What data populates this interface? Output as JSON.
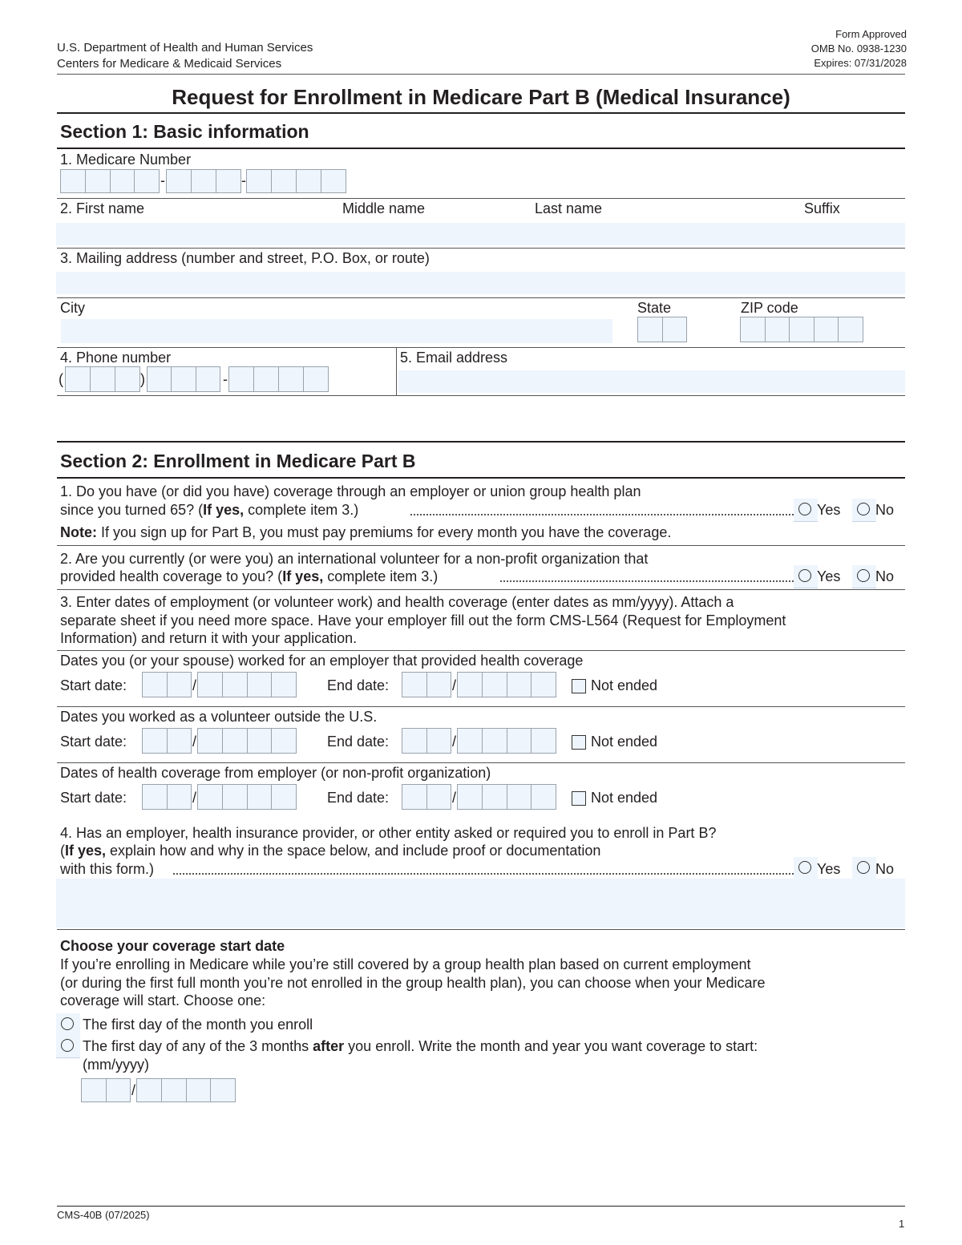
{
  "header": {
    "agency_line1": "U.S. Department of Health and Human Services",
    "agency_line2": "Centers for Medicare & Medicaid Services",
    "approval": "Form Approved",
    "omb": "OMB No. 0938-1230",
    "expires": "Expires: 07/31/2028"
  },
  "title": "Request for Enrollment in Medicare Part B (Medical Insurance)",
  "section1": {
    "heading": "Section 1: Basic information",
    "medicare_number": "1. Medicare Number",
    "first_name": "2. First name",
    "middle_name": "Middle name",
    "last_name": "Last name",
    "suffix": "Suffix",
    "mailing_address": "3. Mailing address (number and street, P.O. Box, or route)",
    "city": "City",
    "state": "State",
    "zip": "ZIP code",
    "phone": "4. Phone number",
    "email": "5. Email address"
  },
  "section2": {
    "heading": "Section 2: Enrollment in Medicare Part B",
    "q1_line1": "1. Do you have (or did you have) coverage through an employer or union group health plan",
    "q1_line2a": "since you turned 65? (",
    "q1_bold": "If yes,",
    "q1_line2b": " complete item 3.)",
    "note_bold": "Note:",
    "note": " If you sign up for Part B, you must pay premiums for every month you have the coverage.",
    "q2_line1": "2. Are you currently (or were you) an international volunteer for a non-profit organization that",
    "q2_line2a": "provided health coverage to you? (",
    "q2_bold": "If yes,",
    "q2_line2b": " complete item 3.)",
    "q3_line1": "3. Enter dates of employment (or volunteer work) and health coverage (enter dates as mm/yyyy). Attach a",
    "q3_line2": "separate sheet if you need more space. Have your employer fill out the form CMS-L564 (Request for Employment",
    "q3_line3": "Information) and return it with your application.",
    "date_groups": [
      {
        "label": "Dates you (or your spouse) worked for an employer that provided health coverage"
      },
      {
        "label": "Dates you worked as a volunteer outside the U.S."
      },
      {
        "label": "Dates of health coverage from employer (or non-profit organization)"
      }
    ],
    "start_date": "Start date:",
    "end_date": "End date:",
    "not_ended": "Not ended",
    "q4_line1": "4. Has an employer, health insurance provider, or other entity asked or required you to enroll in Part B?",
    "q4_line2a": "(",
    "q4_bold": "If yes,",
    "q4_line2b": " explain how and why in the space below, and include proof or documentation",
    "q4_line3": "with this form.)",
    "yes": "Yes",
    "no": "No",
    "coverage_heading": "Choose your coverage start date",
    "coverage_p1": "If you’re enrolling in Medicare while you’re still covered by a group health plan based on current employment",
    "coverage_p2": "(or during the first full month you’re not enrolled in the group health plan), you can choose when your Medicare",
    "coverage_p3": "coverage will start. Choose one:",
    "option1": "The first day of the month you enroll",
    "option2a": "The first day of any of the 3 months ",
    "option2_bold": "after",
    "option2b": " you enroll. Write the month and year you want coverage to start:",
    "option2_format": "(mm/yyyy)"
  },
  "footer": {
    "form_id": "CMS-40B (07/2025)",
    "page": "1"
  }
}
